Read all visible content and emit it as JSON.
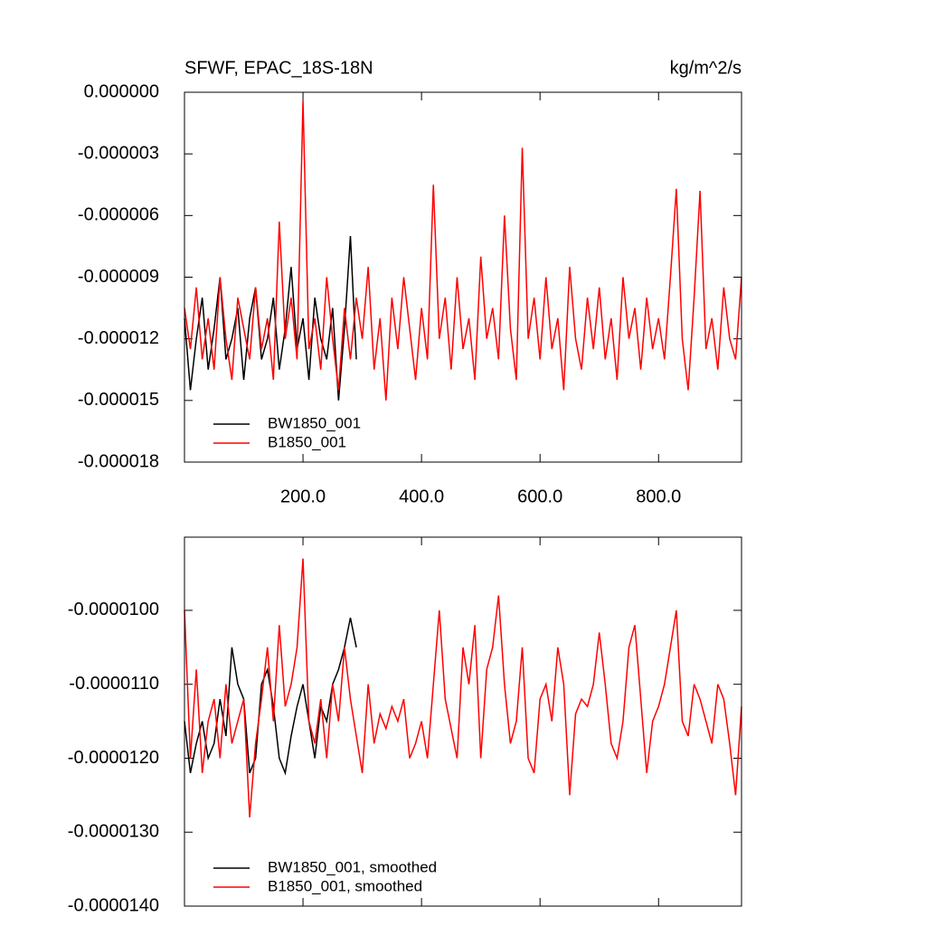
{
  "chart_data": [
    {
      "type": "line",
      "title": "SFWF, EPAC_18S-18N",
      "subtitle": "kg/m^2/s",
      "xlim": [
        0,
        940
      ],
      "xticks": [
        {
          "value": 200,
          "label": "200.0"
        },
        {
          "value": 400,
          "label": "400.0"
        },
        {
          "value": 600,
          "label": "600.0"
        },
        {
          "value": 800,
          "label": "800.0"
        }
      ],
      "ylim": [
        -1.8e-05,
        0
      ],
      "yticks": [
        {
          "value": -1.8e-05,
          "label": "-0.000018"
        },
        {
          "value": -1.5e-05,
          "label": "-0.000015"
        },
        {
          "value": -1.2e-05,
          "label": "-0.000012"
        },
        {
          "value": -9e-06,
          "label": "-0.000009"
        },
        {
          "value": -6e-06,
          "label": "-0.000006"
        },
        {
          "value": -3e-06,
          "label": "-0.000003"
        },
        {
          "value": 0,
          "label": "0.000000"
        }
      ],
      "legend": "lower left",
      "series": [
        {
          "name": "BW1850_001",
          "color": "#000000",
          "x": [
            0,
            10,
            20,
            30,
            40,
            50,
            60,
            70,
            80,
            90,
            100,
            110,
            120,
            130,
            140,
            150,
            160,
            170,
            180,
            190,
            200,
            210,
            220,
            230,
            240,
            250,
            260,
            270,
            280,
            290
          ],
          "values": [
            -1.1e-05,
            -1.45e-05,
            -1.2e-05,
            -1e-05,
            -1.35e-05,
            -1.15e-05,
            -9e-06,
            -1.3e-05,
            -1.2e-05,
            -1.05e-05,
            -1.4e-05,
            -1.1e-05,
            -9.5e-06,
            -1.3e-05,
            -1.2e-05,
            -1e-05,
            -1.35e-05,
            -1.15e-05,
            -8.5e-06,
            -1.25e-05,
            -1.1e-05,
            -1.4e-05,
            -1e-05,
            -1.2e-05,
            -1.3e-05,
            -1.05e-05,
            -1.5e-05,
            -1.15e-05,
            -7e-06,
            -1.3e-05
          ]
        },
        {
          "name": "B1850_001",
          "color": "#ff0000",
          "x": [
            0,
            10,
            20,
            30,
            40,
            50,
            60,
            70,
            80,
            90,
            100,
            110,
            120,
            130,
            140,
            150,
            160,
            170,
            180,
            190,
            200,
            210,
            220,
            230,
            240,
            250,
            260,
            270,
            280,
            290,
            300,
            310,
            320,
            330,
            340,
            350,
            360,
            370,
            380,
            390,
            400,
            410,
            420,
            430,
            440,
            450,
            460,
            470,
            480,
            490,
            500,
            510,
            520,
            530,
            540,
            550,
            560,
            570,
            580,
            590,
            600,
            610,
            620,
            630,
            640,
            650,
            660,
            670,
            680,
            690,
            700,
            710,
            720,
            730,
            740,
            750,
            760,
            770,
            780,
            790,
            800,
            810,
            820,
            830,
            840,
            850,
            860,
            870,
            880,
            890,
            900,
            910,
            920,
            930,
            940
          ],
          "values": [
            -1.05e-05,
            -1.25e-05,
            -9.5e-06,
            -1.3e-05,
            -1.1e-05,
            -1.35e-05,
            -9e-06,
            -1.2e-05,
            -1.4e-05,
            -1e-05,
            -1.15e-05,
            -1.3e-05,
            -9.5e-06,
            -1.25e-05,
            -1.1e-05,
            -1.4e-05,
            -6.3e-06,
            -1.2e-05,
            -1e-05,
            -1.3e-05,
            -4e-07,
            -1.25e-05,
            -1.1e-05,
            -1.35e-05,
            -9e-06,
            -1.2e-05,
            -1.45e-05,
            -1.05e-05,
            -1.3e-05,
            -1e-05,
            -1.2e-05,
            -8.5e-06,
            -1.35e-05,
            -1.1e-05,
            -1.5e-05,
            -1e-05,
            -1.25e-05,
            -9e-06,
            -1.15e-05,
            -1.4e-05,
            -1.05e-05,
            -1.3e-05,
            -4.5e-06,
            -1.2e-05,
            -1e-05,
            -1.35e-05,
            -9e-06,
            -1.25e-05,
            -1.1e-05,
            -1.4e-05,
            -8e-06,
            -1.2e-05,
            -1.05e-05,
            -1.3e-05,
            -6e-06,
            -1.15e-05,
            -1.4e-05,
            -2.7e-06,
            -1.2e-05,
            -1e-05,
            -1.3e-05,
            -9e-06,
            -1.25e-05,
            -1.1e-05,
            -1.45e-05,
            -8.5e-06,
            -1.2e-05,
            -1.35e-05,
            -1e-05,
            -1.25e-05,
            -9.5e-06,
            -1.3e-05,
            -1.1e-05,
            -1.4e-05,
            -9e-06,
            -1.2e-05,
            -1.05e-05,
            -1.35e-05,
            -1e-05,
            -1.25e-05,
            -1.1e-05,
            -1.3e-05,
            -9e-06,
            -4.7e-06,
            -1.2e-05,
            -1.45e-05,
            -1e-05,
            -4.8e-06,
            -1.25e-05,
            -1.1e-05,
            -1.35e-05,
            -9.5e-06,
            -1.2e-05,
            -1.3e-05,
            -9e-06
          ]
        }
      ]
    },
    {
      "type": "line",
      "xlim": [
        0,
        940
      ],
      "ylim": [
        -1.4e-05,
        -9.01e-06
      ],
      "yticks": [
        {
          "value": -1.4e-05,
          "label": "-0.0000140"
        },
        {
          "value": -1.3e-05,
          "label": "-0.0000130"
        },
        {
          "value": -1.2e-05,
          "label": "-0.0000120"
        },
        {
          "value": -1.1e-05,
          "label": "-0.0000110"
        },
        {
          "value": -1e-05,
          "label": "-0.0000100"
        }
      ],
      "legend": "lower left",
      "series": [
        {
          "name": "BW1850_001, smoothed",
          "color": "#000000",
          "x": [
            0,
            10,
            20,
            30,
            40,
            50,
            60,
            70,
            80,
            90,
            100,
            110,
            120,
            130,
            140,
            150,
            160,
            170,
            180,
            190,
            200,
            210,
            220,
            230,
            240,
            250,
            260,
            270,
            280,
            290
          ],
          "values": [
            -1.15e-05,
            -1.22e-05,
            -1.18e-05,
            -1.15e-05,
            -1.2e-05,
            -1.18e-05,
            -1.12e-05,
            -1.17e-05,
            -1.05e-05,
            -1.1e-05,
            -1.12e-05,
            -1.22e-05,
            -1.2e-05,
            -1.1e-05,
            -1.08e-05,
            -1.13e-05,
            -1.2e-05,
            -1.22e-05,
            -1.17e-05,
            -1.13e-05,
            -1.1e-05,
            -1.15e-05,
            -1.2e-05,
            -1.13e-05,
            -1.15e-05,
            -1.1e-05,
            -1.08e-05,
            -1.05e-05,
            -1.01e-05,
            -1.05e-05
          ]
        },
        {
          "name": "B1850_001, smoothed",
          "color": "#ff0000",
          "x": [
            0,
            10,
            20,
            30,
            40,
            50,
            60,
            70,
            80,
            90,
            100,
            110,
            120,
            130,
            140,
            150,
            160,
            170,
            180,
            190,
            200,
            210,
            220,
            230,
            240,
            250,
            260,
            270,
            280,
            290,
            300,
            310,
            320,
            330,
            340,
            350,
            360,
            370,
            380,
            390,
            400,
            410,
            420,
            430,
            440,
            450,
            460,
            470,
            480,
            490,
            500,
            510,
            520,
            530,
            540,
            550,
            560,
            570,
            580,
            590,
            600,
            610,
            620,
            630,
            640,
            650,
            660,
            670,
            680,
            690,
            700,
            710,
            720,
            730,
            740,
            750,
            760,
            770,
            780,
            790,
            800,
            810,
            820,
            830,
            840,
            850,
            860,
            870,
            880,
            890,
            900,
            910,
            920,
            930,
            940
          ],
          "values": [
            -1e-05,
            -1.2e-05,
            -1.08e-05,
            -1.22e-05,
            -1.15e-05,
            -1.12e-05,
            -1.2e-05,
            -1.1e-05,
            -1.18e-05,
            -1.15e-05,
            -1.12e-05,
            -1.28e-05,
            -1.18e-05,
            -1.12e-05,
            -1.05e-05,
            -1.15e-05,
            -1.02e-05,
            -1.13e-05,
            -1.1e-05,
            -1.05e-05,
            -9.3e-06,
            -1.15e-05,
            -1.18e-05,
            -1.12e-05,
            -1.2e-05,
            -1.1e-05,
            -1.15e-05,
            -1.05e-05,
            -1.12e-05,
            -1.17e-05,
            -1.22e-05,
            -1.1e-05,
            -1.18e-05,
            -1.14e-05,
            -1.16e-05,
            -1.13e-05,
            -1.15e-05,
            -1.12e-05,
            -1.2e-05,
            -1.18e-05,
            -1.15e-05,
            -1.2e-05,
            -1.1e-05,
            -1e-05,
            -1.12e-05,
            -1.16e-05,
            -1.2e-05,
            -1.05e-05,
            -1.1e-05,
            -1.02e-05,
            -1.2e-05,
            -1.08e-05,
            -1.05e-05,
            -9.8e-06,
            -1.1e-05,
            -1.18e-05,
            -1.15e-05,
            -1.05e-05,
            -1.2e-05,
            -1.22e-05,
            -1.12e-05,
            -1.1e-05,
            -1.15e-05,
            -1.05e-05,
            -1.1e-05,
            -1.25e-05,
            -1.14e-05,
            -1.12e-05,
            -1.13e-05,
            -1.1e-05,
            -1.03e-05,
            -1.1e-05,
            -1.18e-05,
            -1.2e-05,
            -1.15e-05,
            -1.05e-05,
            -1.02e-05,
            -1.12e-05,
            -1.22e-05,
            -1.15e-05,
            -1.13e-05,
            -1.1e-05,
            -1.05e-05,
            -1e-05,
            -1.15e-05,
            -1.17e-05,
            -1.1e-05,
            -1.12e-05,
            -1.15e-05,
            -1.18e-05,
            -1.1e-05,
            -1.12e-05,
            -1.18e-05,
            -1.25e-05,
            -1.13e-05
          ]
        }
      ]
    }
  ]
}
